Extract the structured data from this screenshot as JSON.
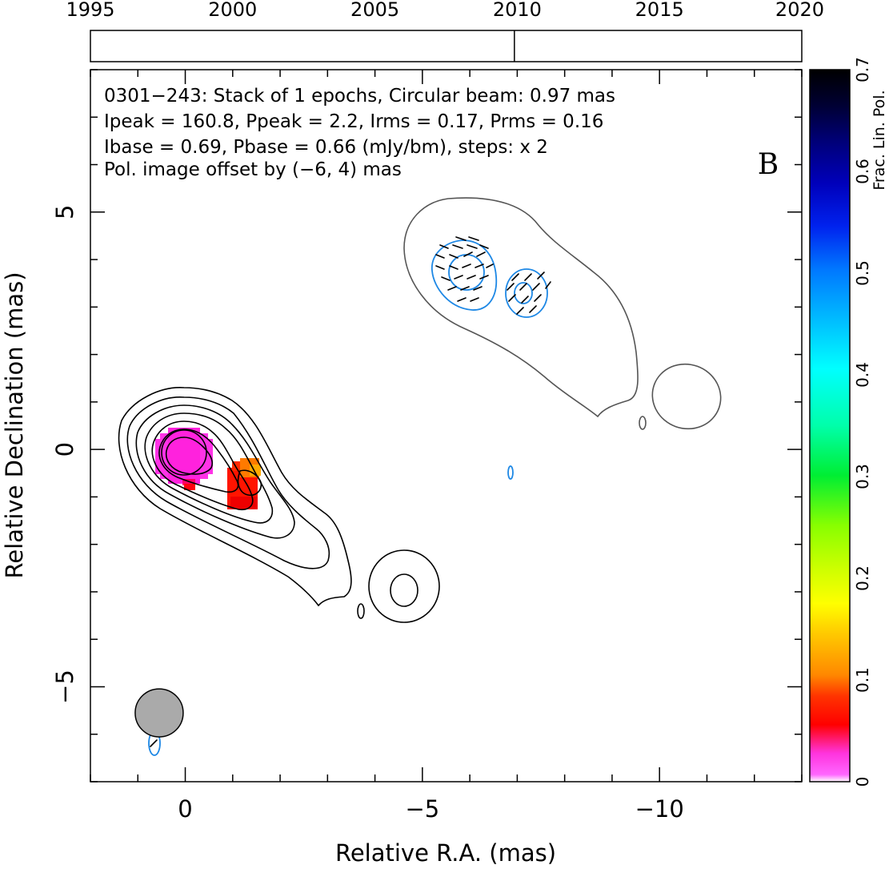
{
  "chart_data": {
    "type": "contour",
    "source_name": "0301-243",
    "panel_letter": "B",
    "annotations": [
      "0301−243: Stack of 1 epochs, Circular beam: 0.97 mas",
      "Ipeak = 160.8, Ppeak = 2.2, Irms = 0.17, Prms = 0.16",
      "Ibase = 0.69, Pbase = 0.66 (mJy/bm), steps: x 2",
      "Pol. image offset by (−6, 4) mas"
    ],
    "xlabel": "Relative R.A. (mas)",
    "ylabel": "Relative Declination (mas)",
    "xlim": [
      2,
      -13
    ],
    "ylim": [
      -7,
      8
    ],
    "x_ticks": [
      {
        "value": 0,
        "label": "0"
      },
      {
        "value": -5,
        "label": "−5"
      },
      {
        "value": -10,
        "label": "−10"
      }
    ],
    "y_ticks": [
      {
        "value": -5,
        "label": "−5"
      },
      {
        "value": 0,
        "label": "0"
      },
      {
        "value": 5,
        "label": "5"
      }
    ],
    "timeline": {
      "range": [
        1995,
        2020
      ],
      "tick_labels": [
        "1995",
        "2000",
        "2005",
        "2010",
        "2015",
        "2020"
      ],
      "epochs": [
        2009.9
      ]
    },
    "beam": {
      "x": 0.55,
      "y": -5.55,
      "diameter_mas": 0.97
    },
    "colorbar": {
      "label": "Frac. Lin. Pol.",
      "range": [
        0,
        0.7
      ],
      "tick_labels": [
        "0",
        "0.1",
        "0.2",
        "0.3",
        "0.4",
        "0.5",
        "0.6",
        "0.7"
      ]
    },
    "colors": {
      "stokes_i_contour": "#000000",
      "pol_image_contour": "#555555",
      "pol_contour": "#1e88e5",
      "offset_text": "#1e88e5",
      "beam_fill": "#aaaaaa",
      "core_fracpol": "#ff22e0",
      "knot_fracpol": "#ff1a00"
    }
  }
}
